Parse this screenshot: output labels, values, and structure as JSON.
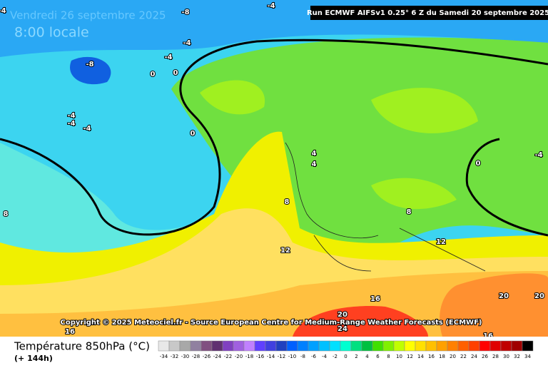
{
  "header": {
    "date": "Vendredi 26 septembre 2025",
    "time": "8:00 locale",
    "run": "Run ECMWF AIFSv1 0.25° 6 Z du Samedi 20 septembre 2025"
  },
  "copyright": "Copyright © 2025 Meteociel.fr - Source European Centre for Medium-Range Weather Forecasts (ECMWF)",
  "contour_labels": [
    "-4",
    "-8",
    "-4",
    "-4",
    "-4",
    "0",
    "0",
    "-8",
    "-4",
    "-4",
    "-4",
    "0",
    "4",
    "4",
    "-4",
    "0",
    "8",
    "8",
    "8",
    "12",
    "12",
    "16",
    "20",
    "24",
    "20",
    "20",
    "16",
    "16"
  ],
  "legend": {
    "title": "Température 850hPa (°C)",
    "subtitle": "(+ 144h)",
    "ticks": [
      -34,
      -32,
      -30,
      -28,
      -26,
      -24,
      -22,
      -20,
      -18,
      -16,
      -14,
      -12,
      -10,
      -8,
      -6,
      -4,
      -2,
      0,
      2,
      4,
      6,
      8,
      10,
      12,
      14,
      16,
      18,
      20,
      22,
      24,
      26,
      28,
      30,
      32,
      34
    ],
    "colors": [
      "#e8e8e8",
      "#c8c8c8",
      "#a8a8a8",
      "#9080a0",
      "#805080",
      "#603070",
      "#8040c0",
      "#a060e0",
      "#c080ff",
      "#6040ff",
      "#4040e0",
      "#2040c0",
      "#0060ff",
      "#0080ff",
      "#00a0ff",
      "#00c0ff",
      "#00e0ff",
      "#00ffd0",
      "#00e080",
      "#00c040",
      "#40e000",
      "#80f000",
      "#c0ff00",
      "#ffff00",
      "#ffe000",
      "#ffc000",
      "#ffa000",
      "#ff8000",
      "#ff6000",
      "#ff4000",
      "#ff0000",
      "#e00000",
      "#c00000",
      "#a00000",
      "#000000"
    ]
  }
}
